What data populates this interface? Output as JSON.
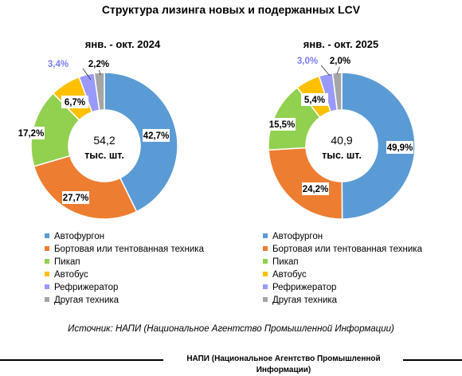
{
  "title": "Структура лизинга новых и подержанных LCV",
  "chart_data": [
    {
      "type": "pie",
      "subtitle": "янв. - окт. 2024",
      "center_value": "54,2",
      "center_unit": "тыс. шт.",
      "categories": [
        "Автофургон",
        "Бортовая или тентованная техника",
        "Пикап",
        "Автобус",
        "Рефрижератор",
        "Другая техника"
      ],
      "values": [
        42.7,
        27.7,
        17.2,
        6.7,
        3.4,
        2.2
      ],
      "labels": [
        "42,7%",
        "27,7%",
        "17,2%",
        "6,7%",
        "3,4%",
        "2,2%"
      ],
      "colors": [
        "#5b9bd5",
        "#ed7d31",
        "#92d050",
        "#ffc000",
        "#9999ff",
        "#a5a5a5"
      ],
      "legend": "bottom"
    },
    {
      "type": "pie",
      "subtitle": "янв. - окт. 2025",
      "center_value": "40,9",
      "center_unit": "тыс. шт.",
      "categories": [
        "Автофургон",
        "Бортовая или тентованная техника",
        "Пикап",
        "Автобус",
        "Рефрижератор",
        "Другая техника"
      ],
      "values": [
        49.9,
        24.2,
        15.5,
        5.4,
        3.0,
        2.0
      ],
      "labels": [
        "49,9%",
        "24,2%",
        "15,5%",
        "5,4%",
        "3,0%",
        "2,0%"
      ],
      "colors": [
        "#5b9bd5",
        "#ed7d31",
        "#92d050",
        "#ffc000",
        "#9999ff",
        "#a5a5a5"
      ],
      "legend": "bottom"
    }
  ],
  "source": "Источник: НАПИ (Национальное Агентство Промышленной Информации)",
  "footer": "НАПИ (Национальное Агентство Промышленной Информации)"
}
